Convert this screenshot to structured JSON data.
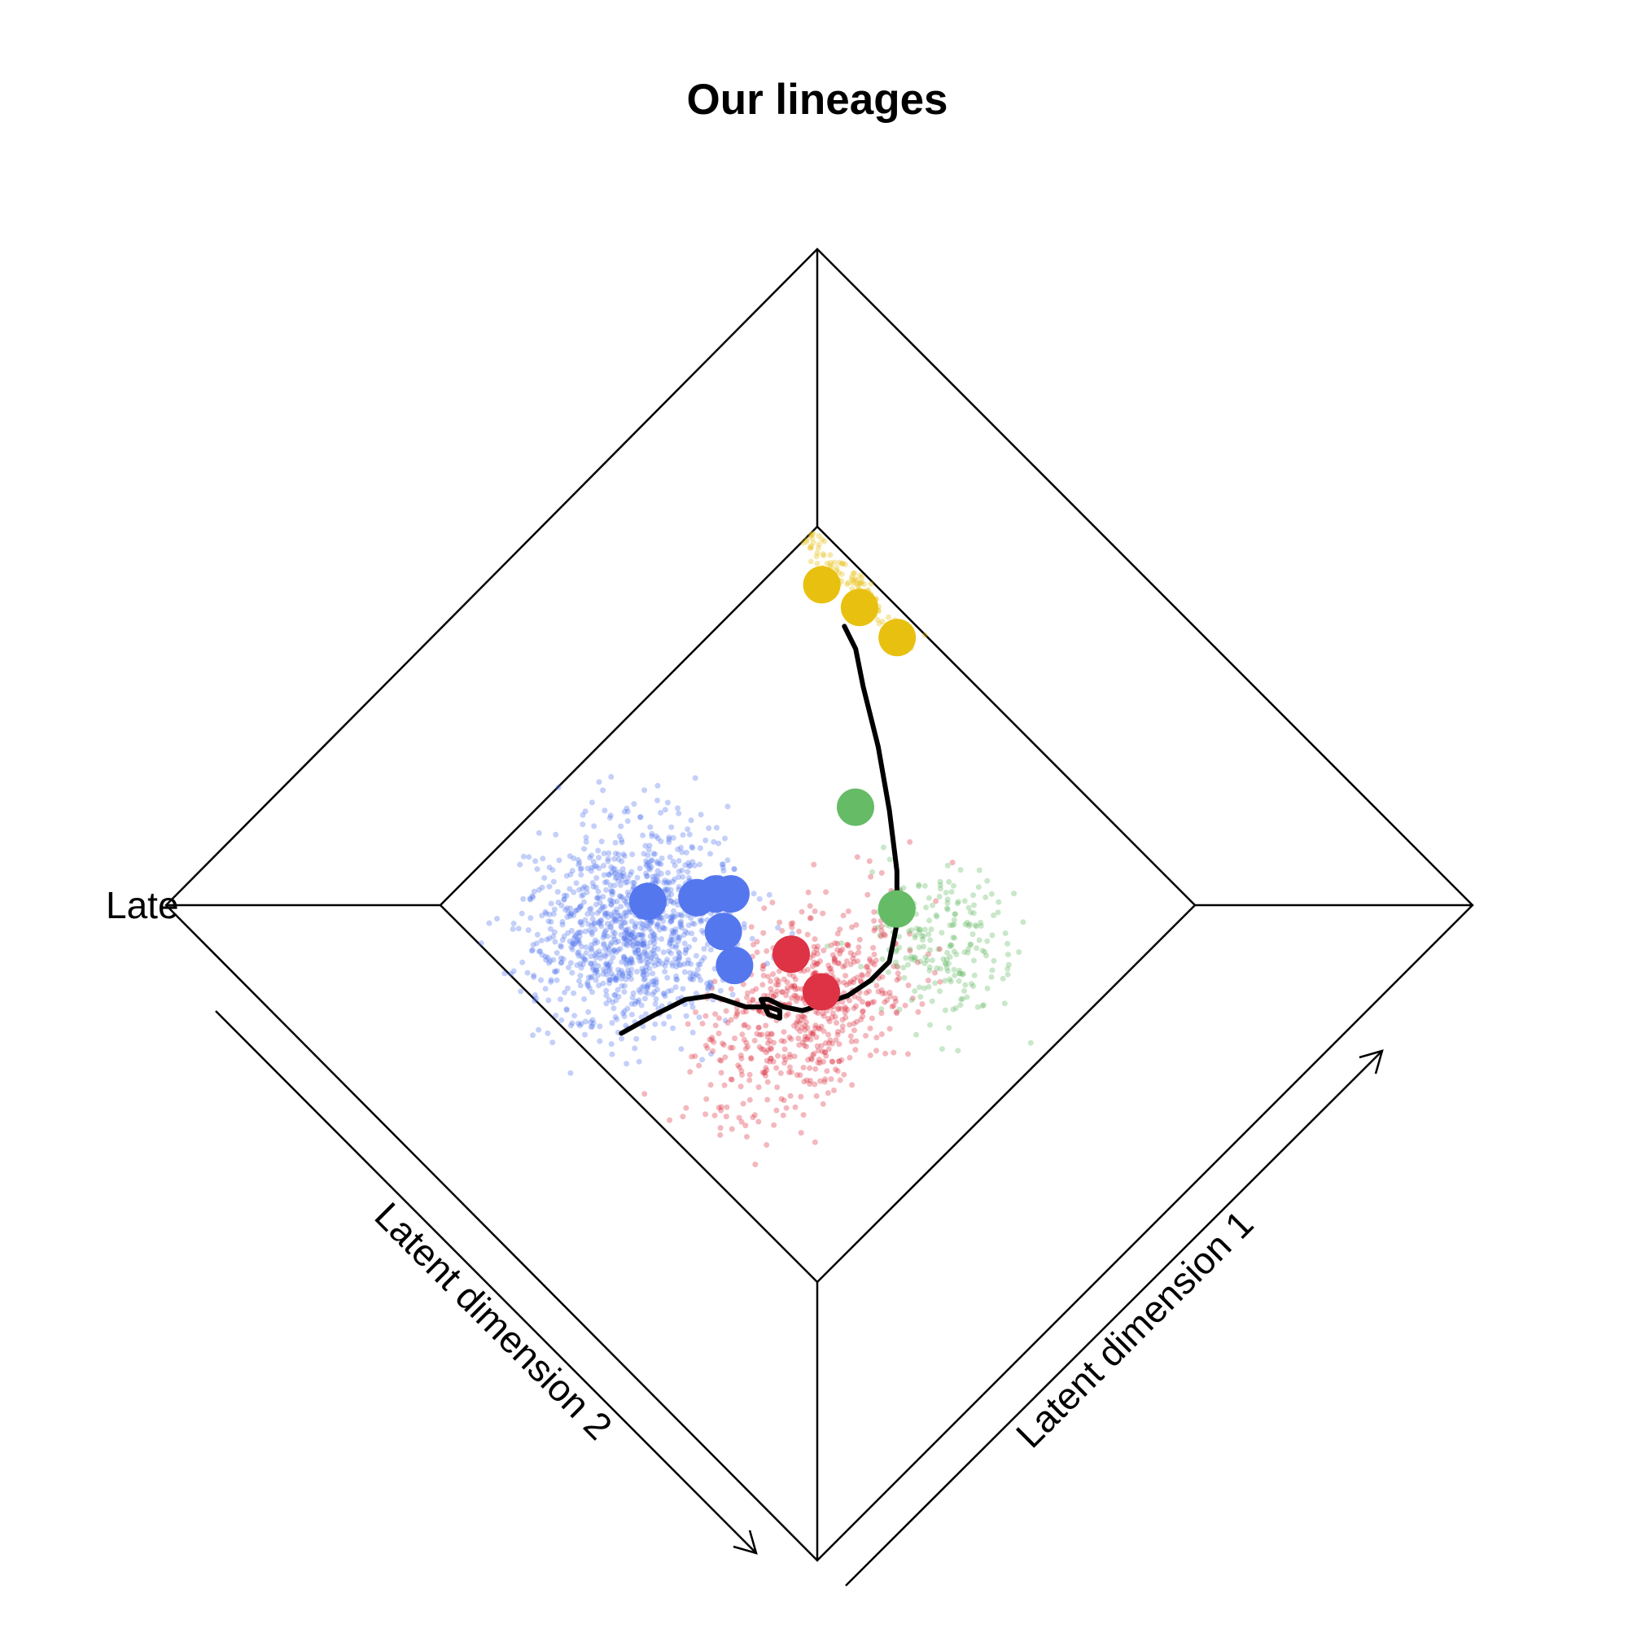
{
  "chart_data": {
    "type": "scatter",
    "title": "Our lineages",
    "xlabel": "Latent dimension 1",
    "ylabel": "Latent dimension 2",
    "zlabel": "Late",
    "projection": "3d-diamond",
    "grid": false,
    "legend": "none",
    "colors": {
      "blue": "#5577ee",
      "red": "#dd3344",
      "green": "#66bb66",
      "yellow": "#e8c010",
      "line": "#000000"
    },
    "background_cells": {
      "alpha": 0.35,
      "clusters": [
        {
          "color": "blue",
          "count": 1100,
          "center": [
            0.22,
            0.72
          ],
          "spread": [
            0.17,
            0.16
          ]
        },
        {
          "color": "red",
          "count": 650,
          "center": [
            0.35,
            0.38
          ],
          "spread": [
            0.2,
            0.13
          ]
        },
        {
          "color": "green",
          "count": 220,
          "center": [
            0.62,
            0.28
          ],
          "spread": [
            0.11,
            0.13
          ]
        },
        {
          "color": "yellow",
          "count": 110,
          "center": [
            0.97,
            0.88
          ],
          "spread": [
            0.02,
            0.13
          ]
        }
      ]
    },
    "centroids": [
      {
        "color": "blue",
        "u": 0.28,
        "v": 0.73
      },
      {
        "color": "blue",
        "u": 0.35,
        "v": 0.67
      },
      {
        "color": "blue",
        "u": 0.38,
        "v": 0.65
      },
      {
        "color": "blue",
        "u": 0.4,
        "v": 0.63
      },
      {
        "color": "blue",
        "u": 0.34,
        "v": 0.59
      },
      {
        "color": "blue",
        "u": 0.31,
        "v": 0.53
      },
      {
        "color": "red",
        "u": 0.4,
        "v": 0.47
      },
      {
        "color": "red",
        "u": 0.39,
        "v": 0.38
      },
      {
        "color": "green",
        "u": 0.68,
        "v": 0.58
      },
      {
        "color": "green",
        "u": 0.6,
        "v": 0.39
      },
      {
        "color": "yellow",
        "u": 0.93,
        "v": 0.92
      },
      {
        "color": "yellow",
        "u": 0.95,
        "v": 0.84
      },
      {
        "color": "yellow",
        "u": 0.96,
        "v": 0.75
      }
    ],
    "trajectory": [
      [
        0.07,
        0.59
      ],
      [
        0.14,
        0.57
      ],
      [
        0.2,
        0.55
      ],
      [
        0.24,
        0.52
      ],
      [
        0.27,
        0.46
      ],
      [
        0.3,
        0.43
      ],
      [
        0.31,
        0.41
      ],
      [
        0.3,
        0.4
      ],
      [
        0.29,
        0.42
      ],
      [
        0.3,
        0.45
      ],
      [
        0.31,
        0.44
      ],
      [
        0.32,
        0.41
      ],
      [
        0.34,
        0.38
      ],
      [
        0.38,
        0.36
      ],
      [
        0.42,
        0.34
      ],
      [
        0.47,
        0.33
      ],
      [
        0.52,
        0.33
      ],
      [
        0.58,
        0.37
      ],
      [
        0.65,
        0.44
      ],
      [
        0.72,
        0.53
      ],
      [
        0.79,
        0.63
      ],
      [
        0.85,
        0.73
      ],
      [
        0.89,
        0.79
      ],
      [
        0.905,
        0.835
      ]
    ]
  }
}
